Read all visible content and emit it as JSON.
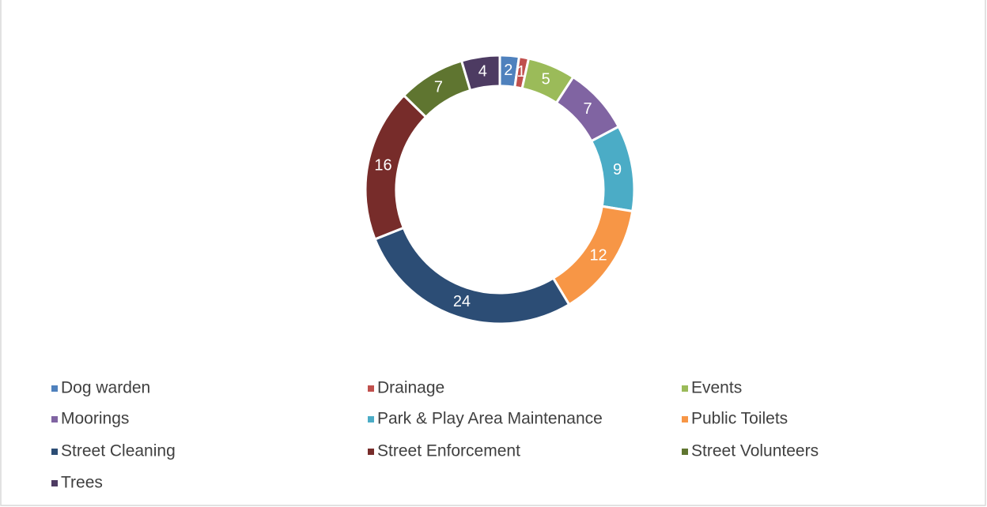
{
  "chart_data": {
    "type": "doughnut",
    "categories": [
      "Dog warden",
      "Drainage",
      "Events",
      "Moorings",
      "Park & Play Area Maintenance",
      "Public Toilets",
      "Street Cleaning",
      "Street Enforcement",
      "Street Volunteers",
      "Trees"
    ],
    "values": [
      2,
      1,
      5,
      7,
      9,
      12,
      24,
      16,
      7,
      4
    ],
    "colors": [
      "#4f81bd",
      "#c0504d",
      "#9bbb59",
      "#8064a2",
      "#4bacc6",
      "#f79646",
      "#2c4d75",
      "#772c2a",
      "#5f7530",
      "#4d3b62"
    ],
    "legend": "bottom"
  }
}
